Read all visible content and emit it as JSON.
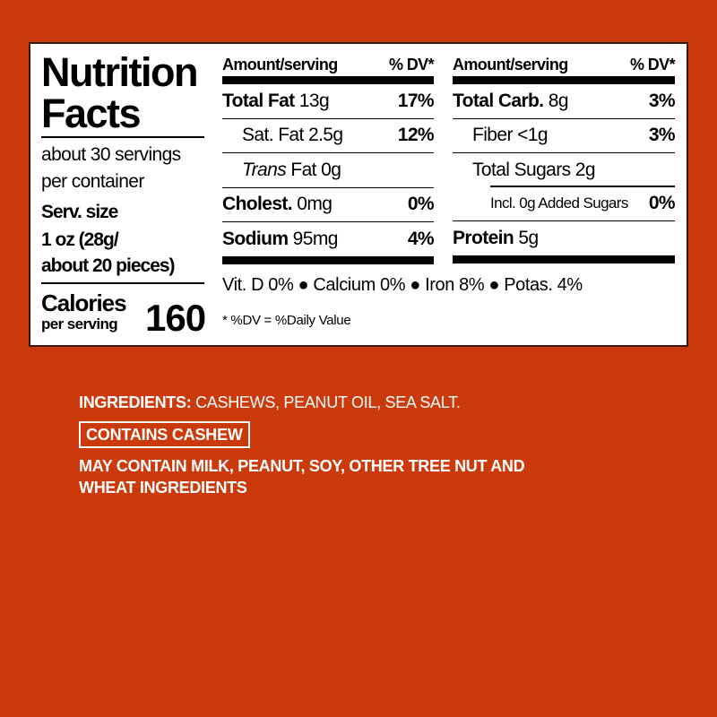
{
  "label": {
    "title_line1": "Nutrition",
    "title_line2": "Facts",
    "servings_line1": "about 30 servings",
    "servings_line2": "per container",
    "serv_size_label": "Serv. size",
    "serv_size_line1": "1 oz (28g/",
    "serv_size_line2": "about 20 pieces)",
    "calories_label": "Calories",
    "calories_sub": "per serving",
    "calories_value": "160",
    "left_table": {
      "header_amount": "Amount/serving",
      "header_dv": "% DV*",
      "rows": [
        {
          "name": "Total Fat",
          "amount": "13g",
          "dv": "17%"
        },
        {
          "name": "Sat. Fat",
          "amount": "2.5g",
          "dv": "12%"
        },
        {
          "name_italic": "Trans",
          "name": "Fat",
          "amount": "0g",
          "dv": ""
        },
        {
          "name": "Cholest.",
          "amount": "0mg",
          "dv": "0%"
        },
        {
          "name": "Sodium",
          "amount": "95mg",
          "dv": "4%"
        }
      ]
    },
    "right_table": {
      "header_amount": "Amount/serving",
      "header_dv": "% DV*",
      "rows": [
        {
          "name": "Total Carb.",
          "amount": "8g",
          "dv": "3%"
        },
        {
          "name": "Fiber",
          "amount": "<1g",
          "dv": "3%"
        },
        {
          "name": "Total Sugars",
          "amount": "2g",
          "dv": ""
        },
        {
          "name": "Incl. 0g Added Sugars",
          "amount": "",
          "dv": "0%"
        },
        {
          "name": "Protein",
          "amount": "5g",
          "dv": ""
        }
      ]
    },
    "vitamins": "Vit. D 0% ● Calcium 0% ● Iron 8% ● Potas. 4%",
    "footnote": "* %DV = %Daily Value"
  },
  "ingredients": {
    "label": "INGREDIENTS:",
    "text": "CASHEWS, PEANUT OIL, SEA SALT.",
    "contains": "CONTAINS CASHEW",
    "may_contain_line1": "MAY CONTAIN MILK, PEANUT, SOY, OTHER TREE NUT AND",
    "may_contain_line2": "WHEAT INGREDIENTS"
  },
  "colors": {
    "background": "#cc3a0c",
    "panel": "#ffffff",
    "text": "#000000"
  }
}
